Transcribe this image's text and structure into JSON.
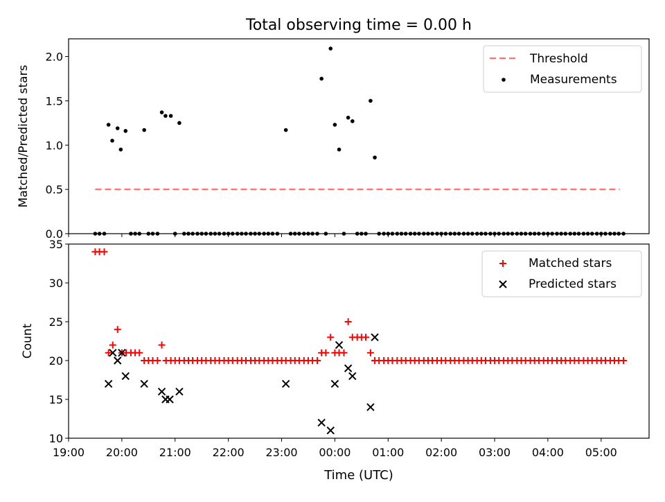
{
  "figure": {
    "title": "Total observing time = 0.00 h",
    "xlabel": "Time (UTC)",
    "x_tick_labels": [
      "19:00",
      "20:00",
      "21:00",
      "22:00",
      "23:00",
      "00:00",
      "01:00",
      "02:00",
      "03:00",
      "04:00",
      "05:00"
    ]
  },
  "colors": {
    "threshold": "#ff7070",
    "measurement": "#000000",
    "matched": "#ff0000",
    "predicted": "#000000"
  },
  "chart_data": [
    {
      "type": "scatter",
      "panel": "top",
      "ylabel": "Matched/Predicted stars",
      "xlim": [
        19.0,
        29.9
      ],
      "ylim": [
        0.0,
        2.2
      ],
      "x_unit": "hours UTC (24+ = after midnight)",
      "y_ticks": [
        "0.0",
        "0.5",
        "1.0",
        "1.5",
        "2.0"
      ],
      "legend": {
        "position": "top-right",
        "entries": [
          "Threshold",
          "Measurements"
        ]
      },
      "threshold": {
        "name": "Threshold",
        "value": 0.5,
        "x_range": [
          19.5,
          29.35
        ]
      },
      "series": [
        {
          "name": "Measurements",
          "nonzero_points": [
            [
              19.75,
              1.23
            ],
            [
              19.82,
              1.05
            ],
            [
              19.92,
              1.19
            ],
            [
              19.98,
              0.95
            ],
            [
              20.07,
              1.16
            ],
            [
              20.42,
              1.17
            ],
            [
              20.75,
              1.37
            ],
            [
              20.82,
              1.33
            ],
            [
              20.92,
              1.33
            ],
            [
              21.08,
              1.25
            ],
            [
              23.08,
              1.17
            ],
            [
              23.75,
              1.75
            ],
            [
              23.92,
              2.09
            ],
            [
              24.0,
              1.23
            ],
            [
              24.08,
              0.95
            ],
            [
              24.25,
              1.31
            ],
            [
              24.33,
              1.27
            ],
            [
              24.67,
              1.5
            ],
            [
              24.75,
              0.86
            ]
          ],
          "zero_value_x": [
            19.5,
            19.58,
            19.67,
            20.17,
            20.25,
            20.33,
            20.5,
            20.58,
            20.67,
            21.0,
            21.17,
            21.25,
            21.33,
            21.42,
            21.5,
            21.58,
            21.67,
            21.75,
            21.83,
            21.92,
            22.0,
            22.08,
            22.17,
            22.25,
            22.33,
            22.42,
            22.5,
            22.58,
            22.67,
            22.75,
            22.83,
            22.92,
            23.17,
            23.25,
            23.33,
            23.42,
            23.5,
            23.58,
            23.67,
            23.83,
            24.17,
            24.42,
            24.5,
            24.58,
            24.83,
            24.92,
            25.0,
            25.08,
            25.17,
            25.25,
            25.33,
            25.42,
            25.5,
            25.58,
            25.67,
            25.75,
            25.83,
            25.92,
            26.0,
            26.08,
            26.17,
            26.25,
            26.33,
            26.42,
            26.5,
            26.58,
            26.67,
            26.75,
            26.83,
            26.92,
            27.0,
            27.08,
            27.17,
            27.25,
            27.33,
            27.42,
            27.5,
            27.58,
            27.67,
            27.75,
            27.83,
            27.92,
            28.0,
            28.08,
            28.17,
            28.25,
            28.33,
            28.42,
            28.5,
            28.58,
            28.67,
            28.75,
            28.83,
            28.92,
            29.0,
            29.08,
            29.17,
            29.25,
            29.33,
            29.42
          ]
        }
      ]
    },
    {
      "type": "scatter",
      "panel": "bottom",
      "ylabel": "Count",
      "xlim": [
        19.0,
        29.9
      ],
      "ylim": [
        10,
        35
      ],
      "x_unit": "hours UTC (24+ = after midnight)",
      "y_ticks": [
        "10",
        "15",
        "20",
        "25",
        "30",
        "35"
      ],
      "legend": {
        "position": "top-right",
        "entries": [
          "Matched stars",
          "Predicted stars"
        ]
      },
      "series": [
        {
          "name": "Matched stars",
          "points": [
            [
              19.5,
              34
            ],
            [
              19.58,
              34
            ],
            [
              19.67,
              34
            ],
            [
              19.75,
              21
            ],
            [
              19.83,
              22
            ],
            [
              19.92,
              24
            ],
            [
              20.0,
              21
            ],
            [
              20.08,
              21
            ],
            [
              20.17,
              21
            ],
            [
              20.25,
              21
            ],
            [
              20.33,
              21
            ],
            [
              20.42,
              20
            ],
            [
              20.5,
              20
            ],
            [
              20.58,
              20
            ],
            [
              20.67,
              20
            ],
            [
              20.75,
              22
            ],
            [
              20.83,
              20
            ],
            [
              20.92,
              20
            ],
            [
              21.0,
              20
            ],
            [
              21.08,
              20
            ],
            [
              21.17,
              20
            ],
            [
              21.25,
              20
            ],
            [
              21.33,
              20
            ],
            [
              21.42,
              20
            ],
            [
              21.5,
              20
            ],
            [
              21.58,
              20
            ],
            [
              21.67,
              20
            ],
            [
              21.75,
              20
            ],
            [
              21.83,
              20
            ],
            [
              21.92,
              20
            ],
            [
              22.0,
              20
            ],
            [
              22.08,
              20
            ],
            [
              22.17,
              20
            ],
            [
              22.25,
              20
            ],
            [
              22.33,
              20
            ],
            [
              22.42,
              20
            ],
            [
              22.5,
              20
            ],
            [
              22.58,
              20
            ],
            [
              22.67,
              20
            ],
            [
              22.75,
              20
            ],
            [
              22.83,
              20
            ],
            [
              22.92,
              20
            ],
            [
              23.0,
              20
            ],
            [
              23.08,
              20
            ],
            [
              23.17,
              20
            ],
            [
              23.25,
              20
            ],
            [
              23.33,
              20
            ],
            [
              23.42,
              20
            ],
            [
              23.5,
              20
            ],
            [
              23.58,
              20
            ],
            [
              23.67,
              20
            ],
            [
              23.75,
              21
            ],
            [
              23.83,
              21
            ],
            [
              23.92,
              23
            ],
            [
              24.0,
              21
            ],
            [
              24.08,
              21
            ],
            [
              24.17,
              21
            ],
            [
              24.25,
              25
            ],
            [
              24.33,
              23
            ],
            [
              24.42,
              23
            ],
            [
              24.5,
              23
            ],
            [
              24.58,
              23
            ],
            [
              24.67,
              21
            ],
            [
              24.75,
              20
            ],
            [
              24.83,
              20
            ],
            [
              24.92,
              20
            ],
            [
              25.0,
              20
            ],
            [
              25.08,
              20
            ],
            [
              25.17,
              20
            ],
            [
              25.25,
              20
            ],
            [
              25.33,
              20
            ],
            [
              25.42,
              20
            ],
            [
              25.5,
              20
            ],
            [
              25.58,
              20
            ],
            [
              25.67,
              20
            ],
            [
              25.75,
              20
            ],
            [
              25.83,
              20
            ],
            [
              25.92,
              20
            ],
            [
              26.0,
              20
            ],
            [
              26.08,
              20
            ],
            [
              26.17,
              20
            ],
            [
              26.25,
              20
            ],
            [
              26.33,
              20
            ],
            [
              26.42,
              20
            ],
            [
              26.5,
              20
            ],
            [
              26.58,
              20
            ],
            [
              26.67,
              20
            ],
            [
              26.75,
              20
            ],
            [
              26.83,
              20
            ],
            [
              26.92,
              20
            ],
            [
              27.0,
              20
            ],
            [
              27.08,
              20
            ],
            [
              27.17,
              20
            ],
            [
              27.25,
              20
            ],
            [
              27.33,
              20
            ],
            [
              27.42,
              20
            ],
            [
              27.5,
              20
            ],
            [
              27.58,
              20
            ],
            [
              27.67,
              20
            ],
            [
              27.75,
              20
            ],
            [
              27.83,
              20
            ],
            [
              27.92,
              20
            ],
            [
              28.0,
              20
            ],
            [
              28.08,
              20
            ],
            [
              28.17,
              20
            ],
            [
              28.25,
              20
            ],
            [
              28.33,
              20
            ],
            [
              28.42,
              20
            ],
            [
              28.5,
              20
            ],
            [
              28.58,
              20
            ],
            [
              28.67,
              20
            ],
            [
              28.75,
              20
            ],
            [
              28.83,
              20
            ],
            [
              28.92,
              20
            ],
            [
              29.0,
              20
            ],
            [
              29.08,
              20
            ],
            [
              29.17,
              20
            ],
            [
              29.25,
              20
            ],
            [
              29.33,
              20
            ],
            [
              29.42,
              20
            ]
          ]
        },
        {
          "name": "Predicted stars",
          "points": [
            [
              19.75,
              17
            ],
            [
              19.83,
              21
            ],
            [
              19.92,
              20
            ],
            [
              20.0,
              21
            ],
            [
              20.07,
              18
            ],
            [
              20.42,
              17
            ],
            [
              20.75,
              16
            ],
            [
              20.82,
              15
            ],
            [
              20.9,
              15
            ],
            [
              21.08,
              16
            ],
            [
              23.08,
              17
            ],
            [
              23.75,
              12
            ],
            [
              23.92,
              11
            ],
            [
              24.0,
              17
            ],
            [
              24.08,
              22
            ],
            [
              24.25,
              19
            ],
            [
              24.33,
              18
            ],
            [
              24.67,
              14
            ],
            [
              24.75,
              23
            ]
          ]
        }
      ]
    }
  ]
}
